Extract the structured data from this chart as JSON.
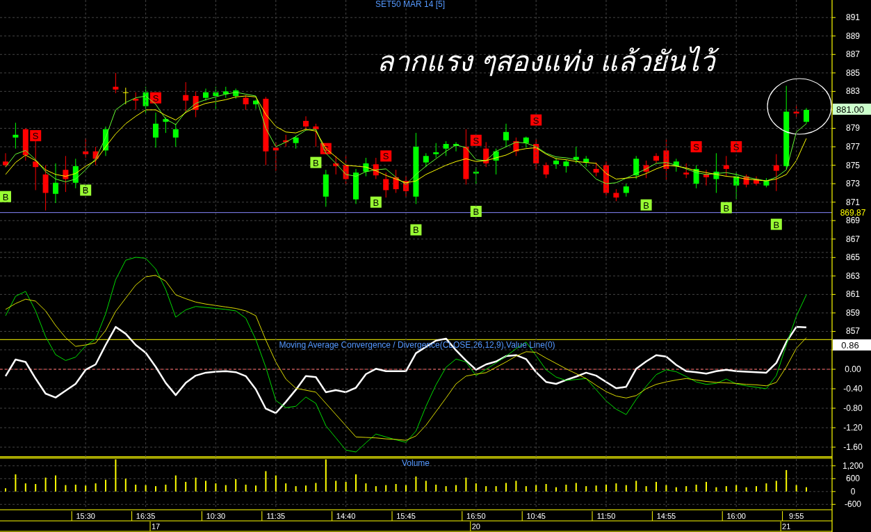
{
  "chart_data": [
    {
      "type": "candlestick",
      "title": "SET50 MAR 14  [5]",
      "annotations": [
        "ลากแรง ๆสองแท่ง แล้วยันไว้",
        "881.00"
      ],
      "categories": [
        null,
        null,
        null,
        null,
        null,
        null,
        null,
        null,
        null,
        null,
        null,
        null,
        null,
        null,
        null,
        null,
        null,
        null,
        null,
        null,
        null,
        null,
        null,
        null,
        null,
        null,
        null,
        null,
        null,
        null,
        null,
        null,
        null,
        null,
        null,
        null,
        null,
        null,
        null,
        null,
        null,
        null,
        null,
        null,
        null,
        null,
        null,
        null,
        null,
        null,
        null,
        null,
        null,
        null,
        null,
        null,
        null,
        null,
        null,
        null,
        null,
        null,
        null,
        null,
        null,
        null,
        null,
        null,
        null,
        null,
        null,
        null,
        null,
        null,
        null,
        null,
        null,
        null,
        null,
        null,
        null
      ],
      "ohlc": [
        [
          875.4,
          876.3,
          874.8,
          875.0
        ],
        [
          878.0,
          879.6,
          876.8,
          878.3
        ],
        [
          878.9,
          879.0,
          875.5,
          876.1
        ],
        [
          875.4,
          877.6,
          872.3,
          874.8
        ],
        [
          874.0,
          875.0,
          870.1,
          872.0
        ],
        [
          871.9,
          875.2,
          870.9,
          873.1
        ],
        [
          874.5,
          876.0,
          872.1,
          873.5
        ],
        [
          873.1,
          875.7,
          872.5,
          874.9
        ],
        [
          876.5,
          877.9,
          875.8,
          876.2
        ],
        [
          876.5,
          877.0,
          875.0,
          875.7
        ],
        [
          876.6,
          879.2,
          876.0,
          878.9
        ],
        [
          883.5,
          885.0,
          882.8,
          883.2
        ],
        [
          882.9,
          883.4,
          881.6,
          882.9
        ],
        [
          882.2,
          882.9,
          881.0,
          882.0
        ],
        [
          881.4,
          883.5,
          880.5,
          882.9
        ],
        [
          878.0,
          880.7,
          876.9,
          879.5
        ],
        [
          879.7,
          880.2,
          878.5,
          880.0
        ],
        [
          878.0,
          879.5,
          877.0,
          878.9
        ],
        [
          882.6,
          884.0,
          880.8,
          882.0
        ],
        [
          882.5,
          883.0,
          880.2,
          881.0
        ],
        [
          882.3,
          883.3,
          882.0,
          882.9
        ],
        [
          882.5,
          883.5,
          881.0,
          882.9
        ],
        [
          882.7,
          883.5,
          882.3,
          883.0
        ],
        [
          882.5,
          883.3,
          882.2,
          883.1
        ],
        [
          882.3,
          882.6,
          881.0,
          881.6
        ],
        [
          881.6,
          882.1,
          881.1,
          882.0
        ],
        [
          882.2,
          882.4,
          875.0,
          876.5
        ],
        [
          876.9,
          877.5,
          874.4,
          876.6
        ],
        [
          877.7,
          878.3,
          877.0,
          877.5
        ],
        [
          877.4,
          878.2,
          876.8,
          878.0
        ],
        [
          879.8,
          880.3,
          878.8,
          879.2
        ],
        [
          879.2,
          879.5,
          877.0,
          878.9
        ],
        [
          871.6,
          874.5,
          870.5,
          874.0
        ],
        [
          875.2,
          876.0,
          874.0,
          874.9
        ],
        [
          875.0,
          876.1,
          872.8,
          873.5
        ],
        [
          871.3,
          874.6,
          870.8,
          874.2
        ],
        [
          874.3,
          875.8,
          873.8,
          875.2
        ],
        [
          875.1,
          875.8,
          873.5,
          873.9
        ],
        [
          873.5,
          874.2,
          871.5,
          872.3
        ],
        [
          873.7,
          874.5,
          872.0,
          872.4
        ],
        [
          873.3,
          873.8,
          871.6,
          872.2
        ],
        [
          871.6,
          878.5,
          870.8,
          877.0
        ],
        [
          875.3,
          876.3,
          874.8,
          876.0
        ],
        [
          876.2,
          877.4,
          875.8,
          876.4
        ],
        [
          876.8,
          877.6,
          876.0,
          877.3
        ],
        [
          877.1,
          877.5,
          876.5,
          877.3
        ],
        [
          877.0,
          878.9,
          872.9,
          873.5
        ],
        [
          874.1,
          874.8,
          873.0,
          874.3
        ],
        [
          876.8,
          877.5,
          874.8,
          875.2
        ],
        [
          875.5,
          876.8,
          874.0,
          876.5
        ],
        [
          877.7,
          879.5,
          877.0,
          878.6
        ],
        [
          877.6,
          878.0,
          876.0,
          876.5
        ],
        [
          877.4,
          878.1,
          876.9,
          878.0
        ],
        [
          877.3,
          877.8,
          874.5,
          875.2
        ],
        [
          875.0,
          875.3,
          873.6,
          874.0
        ],
        [
          875.1,
          875.8,
          874.6,
          875.5
        ],
        [
          874.9,
          875.6,
          874.2,
          875.4
        ],
        [
          875.6,
          877.0,
          875.2,
          875.9
        ],
        [
          875.3,
          876.0,
          874.8,
          875.7
        ],
        [
          874.6,
          875.3,
          873.8,
          874.2
        ],
        [
          875.0,
          875.4,
          871.7,
          872.0
        ],
        [
          872.0,
          872.4,
          871.1,
          871.5
        ],
        [
          872.0,
          873.0,
          871.6,
          872.7
        ],
        [
          873.9,
          876.0,
          873.5,
          875.7
        ],
        [
          875.0,
          875.5,
          873.6,
          874.3
        ],
        [
          876.0,
          876.3,
          875.2,
          875.5
        ],
        [
          876.6,
          877.8,
          873.4,
          874.6
        ],
        [
          874.9,
          875.7,
          874.3,
          875.4
        ],
        [
          874.2,
          875.2,
          873.6,
          874.0
        ],
        [
          873.0,
          875.0,
          872.5,
          874.6
        ],
        [
          874.0,
          874.5,
          872.8,
          873.7
        ],
        [
          873.5,
          876.3,
          872.0,
          874.3
        ],
        [
          875.0,
          876.0,
          873.8,
          874.6
        ],
        [
          872.8,
          874.2,
          871.3,
          873.8
        ],
        [
          873.8,
          874.0,
          872.6,
          872.9
        ],
        [
          873.5,
          873.8,
          872.8,
          873.0
        ],
        [
          872.8,
          873.6,
          872.6,
          873.3
        ],
        [
          875.0,
          876.2,
          872.2,
          874.4
        ],
        [
          874.9,
          883.6,
          874.6,
          880.8
        ],
        [
          880.8,
          881.6,
          880.2,
          880.6
        ],
        [
          879.7,
          881.2,
          879.5,
          881.0
        ]
      ],
      "series": [
        {
          "type": "line",
          "color": "#66ff33",
          "values": [
            874.8,
            876.2,
            876.6,
            875.6,
            874.3,
            873.5,
            873.2,
            873.5,
            874.5,
            875.7,
            878.0,
            881.0,
            881.8,
            882.3,
            882.5,
            881.6,
            880.0,
            879.4,
            880.8,
            881.7,
            882.1,
            882.4,
            882.7,
            882.9,
            882.7,
            882.5,
            879.0,
            877.0,
            877.5,
            878.1,
            878.8,
            878.9,
            876.3,
            875.2,
            874.0,
            873.8,
            874.3,
            874.5,
            874.6,
            873.7,
            872.9,
            874.0,
            874.9,
            875.7,
            876.5,
            877.2,
            876.9,
            875.6,
            875.5,
            876.5,
            877.0,
            877.5,
            877.4,
            877.0,
            876.3,
            875.9,
            875.8,
            875.6,
            874.6,
            873.5,
            873.0,
            873.1,
            873.6,
            874.1,
            874.6,
            875.2,
            875.3,
            875.0,
            874.6,
            874.2,
            874.0,
            874.1,
            874.2,
            874.0,
            873.7,
            873.5,
            873.3,
            873.7,
            874.5,
            878.6,
            879.5
          ]
        },
        {
          "type": "line",
          "color": "#ffff00",
          "values": [
            874.0,
            875.3,
            876.1,
            875.5,
            874.5,
            874.0,
            873.8,
            874.1,
            874.9,
            875.5,
            877.0,
            878.4,
            879.5,
            880.3,
            881.0,
            881.0,
            880.4,
            879.9,
            880.7,
            881.3,
            881.7,
            881.9,
            882.1,
            882.4,
            882.5,
            882.4,
            880.5,
            879.2,
            878.6,
            878.5,
            878.9,
            878.7,
            876.8,
            875.9,
            875.0,
            874.9,
            874.8,
            874.4,
            873.9,
            873.5,
            873.1,
            873.3,
            874.0,
            874.5,
            875.0,
            875.4,
            875.7,
            875.4,
            875.5,
            875.8,
            876.1,
            876.6,
            876.8,
            876.9,
            876.2,
            875.7,
            875.6,
            875.4,
            875.3,
            875.2,
            874.1,
            873.5,
            873.6,
            873.7,
            874.1,
            874.6,
            875.0,
            874.9,
            874.7,
            874.4,
            874.2,
            874.0,
            873.8,
            873.7,
            873.5,
            873.4,
            873.3,
            873.5,
            874.0,
            875.5,
            877.9
          ]
        },
        {
          "type": "scatter",
          "marker": "square",
          "color": "#99ff33",
          "values": [
            871.6,
            null,
            null,
            null,
            null,
            null,
            null,
            null,
            872.3,
            null,
            null,
            null,
            null,
            null,
            null,
            null,
            null,
            null,
            null,
            null,
            null,
            null,
            null,
            null,
            null,
            null,
            null,
            null,
            null,
            null,
            null,
            875.3,
            null,
            null,
            null,
            null,
            null,
            871.0,
            null,
            null,
            null,
            868.0,
            null,
            null,
            null,
            null,
            null,
            870.0,
            null,
            null,
            null,
            null,
            null,
            null,
            null,
            null,
            null,
            null,
            null,
            null,
            null,
            null,
            null,
            null,
            870.7,
            null,
            null,
            null,
            null,
            null,
            null,
            null,
            870.4,
            null,
            null,
            null,
            null,
            868.6,
            null,
            null,
            null
          ],
          "value_labels": [
            "B",
            null,
            null,
            null,
            null,
            null,
            null,
            null,
            "B",
            null,
            null,
            null,
            null,
            null,
            null,
            null,
            null,
            null,
            null,
            null,
            null,
            null,
            null,
            null,
            null,
            null,
            null,
            null,
            null,
            null,
            null,
            "B",
            null,
            null,
            null,
            null,
            null,
            "B",
            null,
            null,
            null,
            "B",
            null,
            null,
            null,
            null,
            null,
            "B",
            null,
            null,
            null,
            null,
            null,
            null,
            null,
            null,
            null,
            null,
            null,
            null,
            null,
            null,
            null,
            null,
            "B",
            null,
            null,
            null,
            null,
            null,
            null,
            null,
            "B",
            null,
            null,
            null,
            null,
            "B",
            null,
            null,
            null
          ]
        },
        {
          "type": "scatter",
          "marker": "square",
          "color": "#ff0000",
          "values": [
            null,
            null,
            null,
            878.2,
            null,
            null,
            null,
            null,
            null,
            null,
            null,
            null,
            null,
            null,
            null,
            882.3,
            null,
            null,
            null,
            null,
            null,
            null,
            null,
            null,
            null,
            null,
            null,
            null,
            null,
            null,
            null,
            null,
            876.8,
            null,
            null,
            null,
            null,
            null,
            876.0,
            null,
            null,
            null,
            null,
            null,
            null,
            null,
            null,
            877.7,
            null,
            null,
            null,
            null,
            null,
            879.9,
            null,
            null,
            null,
            null,
            null,
            null,
            null,
            null,
            null,
            null,
            null,
            null,
            null,
            null,
            null,
            877.0,
            null,
            null,
            null,
            877.0,
            null,
            null,
            null,
            null,
            null,
            null,
            null
          ],
          "value_labels": [
            null,
            null,
            null,
            "S",
            null,
            null,
            null,
            null,
            null,
            null,
            null,
            null,
            null,
            null,
            null,
            "S",
            null,
            null,
            null,
            null,
            null,
            null,
            null,
            null,
            null,
            null,
            null,
            null,
            null,
            null,
            null,
            null,
            "S",
            null,
            null,
            null,
            null,
            null,
            "S",
            null,
            null,
            null,
            null,
            null,
            null,
            null,
            null,
            "S",
            null,
            null,
            null,
            null,
            null,
            "S",
            null,
            null,
            null,
            null,
            null,
            null,
            null,
            null,
            null,
            null,
            null,
            null,
            null,
            null,
            null,
            "S",
            null,
            null,
            null,
            "S",
            null,
            null,
            null,
            null,
            null,
            null,
            null
          ]
        }
      ],
      "ylim": [
        843.4,
        892.9
      ],
      "yticks": [
        857,
        859,
        861,
        863,
        865,
        867,
        869,
        871,
        873,
        875,
        877,
        879,
        {
          "value": 881,
          "label": null
        },
        883,
        885,
        887,
        889,
        891
      ],
      "tick_labels": "y",
      "grid": true,
      "ref_lines": [
        {
          "axis": "y",
          "value": 869.87,
          "label": "869.87",
          "color": "#8888ff"
        }
      ]
    },
    {
      "type": "line",
      "title": "Moving Average Convergence / Divergence(CLOSE,26,12,9),Value Line(0)",
      "annotations": [
        "0.86"
      ],
      "categories": [
        null,
        null,
        null,
        null,
        null,
        null,
        null,
        null,
        null,
        null,
        null,
        null,
        null,
        null,
        null,
        null,
        null,
        null,
        null,
        null,
        null,
        null,
        null,
        null,
        null,
        null,
        null,
        null,
        null,
        null,
        null,
        null,
        null,
        null,
        null,
        null,
        null,
        null,
        null,
        null,
        null,
        null,
        null,
        null,
        null,
        null,
        null,
        null,
        null,
        null,
        null,
        null,
        null,
        null,
        null,
        null,
        null,
        null,
        null,
        null,
        null,
        null,
        null,
        null,
        null,
        null,
        null,
        null,
        null,
        null,
        null,
        null,
        null,
        null,
        null,
        null,
        null,
        null,
        null,
        null,
        null
      ],
      "series": [
        {
          "color": "#ffffff",
          "values": [
            -0.14,
            0.2,
            0.15,
            -0.19,
            -0.5,
            -0.58,
            -0.44,
            -0.3,
            -0.01,
            0.1,
            0.5,
            0.87,
            0.73,
            0.5,
            0.34,
            0.05,
            -0.28,
            -0.53,
            -0.28,
            -0.13,
            -0.07,
            -0.05,
            -0.04,
            -0.06,
            -0.14,
            -0.41,
            -0.81,
            -0.9,
            -0.67,
            -0.42,
            -0.14,
            -0.16,
            -0.47,
            -0.43,
            -0.47,
            -0.38,
            -0.1,
            0.01,
            -0.04,
            -0.04,
            -0.04,
            0.33,
            0.46,
            0.59,
            0.63,
            0.39,
            0.18,
            -0.01,
            0.1,
            0.16,
            0.27,
            0.29,
            0.21,
            -0.06,
            -0.26,
            -0.3,
            -0.22,
            -0.15,
            -0.07,
            -0.13,
            -0.26,
            -0.39,
            -0.36,
            0.01,
            0.16,
            0.29,
            0.26,
            0.09,
            -0.04,
            -0.06,
            -0.09,
            -0.04,
            -0.01,
            -0.04,
            -0.05,
            -0.06,
            -0.07,
            0.13,
            0.56,
            0.87,
            0.86
          ]
        },
        {
          "color": "#00dd00",
          "values": [
            1.1,
            1.5,
            1.6,
            1.2,
            0.67,
            0.3,
            0.18,
            0.25,
            0.48,
            0.62,
            1.14,
            1.84,
            2.24,
            2.3,
            2.28,
            2.06,
            1.64,
            1.07,
            1.22,
            1.29,
            1.27,
            1.25,
            1.23,
            1.2,
            1.05,
            0.61,
            0.04,
            -0.64,
            -0.79,
            -0.76,
            -0.57,
            -0.7,
            -1.16,
            -1.41,
            -1.66,
            -1.7,
            -1.51,
            -1.33,
            -1.39,
            -1.45,
            -1.5,
            -1.27,
            -0.76,
            -0.32,
            0.04,
            0.21,
            0.15,
            -0.13,
            0.0,
            0.13,
            0.27,
            0.42,
            0.56,
            0.28,
            -0.01,
            -0.16,
            -0.23,
            -0.21,
            -0.19,
            -0.42,
            -0.65,
            -0.82,
            -0.93,
            -0.62,
            -0.35,
            -0.11,
            -0.01,
            -0.05,
            -0.15,
            -0.26,
            -0.31,
            -0.29,
            -0.2,
            -0.3,
            -0.34,
            -0.37,
            -0.4,
            -0.13,
            0.5,
            1.09,
            1.53
          ]
        },
        {
          "color": "#dddd00",
          "values": [
            1.23,
            1.35,
            1.44,
            1.4,
            1.2,
            0.9,
            0.65,
            0.47,
            0.5,
            0.54,
            0.8,
            1.19,
            1.46,
            1.73,
            1.9,
            1.93,
            1.81,
            1.53,
            1.45,
            1.38,
            1.34,
            1.31,
            1.28,
            1.25,
            1.2,
            1.1,
            0.6,
            0.15,
            -0.2,
            -0.39,
            -0.43,
            -0.47,
            -0.7,
            -0.93,
            -1.16,
            -1.39,
            -1.4,
            -1.41,
            -1.43,
            -1.44,
            -1.46,
            -1.37,
            -1.15,
            -0.87,
            -0.59,
            -0.3,
            -0.14,
            -0.1,
            -0.07,
            0.04,
            0.15,
            0.27,
            0.36,
            0.35,
            0.23,
            0.12,
            0.01,
            -0.09,
            -0.19,
            -0.33,
            -0.46,
            -0.55,
            -0.59,
            -0.54,
            -0.4,
            -0.31,
            -0.26,
            -0.22,
            -0.19,
            -0.22,
            -0.25,
            -0.27,
            -0.28,
            -0.29,
            -0.31,
            -0.32,
            -0.34,
            -0.27,
            0.05,
            0.43,
            0.65
          ]
        }
      ],
      "ylim": [
        -1.8,
        2.4
      ],
      "yticks": [
        {
          "value": 0.4,
          "label": null
        },
        {
          "value": 0,
          "label": "0.00"
        },
        {
          "value": -0.4,
          "label": "-0.40"
        },
        {
          "value": -0.8,
          "label": "-0.80"
        },
        {
          "value": -1.2,
          "label": "-1.20"
        },
        {
          "value": -1.6,
          "label": "-1.60"
        }
      ],
      "tick_labels": "y",
      "grid": true,
      "ref_lines": [
        {
          "axis": "y",
          "value": 0,
          "color": "#ff6666",
          "line_style": "dashed"
        },
        {
          "axis": "y",
          "value": 0.61,
          "color": "#ffff00"
        }
      ]
    },
    {
      "type": "bar",
      "title": "Volume",
      "color": "#ffff00",
      "annotations": [
        "17",
        "20",
        "21"
      ],
      "categories": [
        null,
        null,
        null,
        null,
        null,
        null,
        null,
        null,
        "15:30",
        null,
        null,
        null,
        null,
        null,
        "16:35",
        null,
        null,
        null,
        null,
        null,
        null,
        "10:30",
        null,
        null,
        null,
        null,
        null,
        "11:35",
        null,
        null,
        null,
        null,
        null,
        null,
        "14:40",
        null,
        null,
        null,
        null,
        null,
        "15:45",
        null,
        null,
        null,
        null,
        null,
        null,
        "16:50",
        null,
        null,
        null,
        null,
        null,
        "10:45",
        null,
        null,
        null,
        null,
        null,
        null,
        "11:50",
        null,
        null,
        null,
        null,
        null,
        "14:55",
        null,
        null,
        null,
        null,
        null,
        null,
        "16:00",
        null,
        null,
        null,
        null,
        null,
        "9:55",
        null
      ],
      "values": [
        150,
        800,
        380,
        350,
        650,
        750,
        300,
        320,
        280,
        380,
        550,
        1500,
        600,
        320,
        300,
        250,
        320,
        750,
        450,
        650,
        500,
        380,
        300,
        580,
        320,
        280,
        950,
        750,
        380,
        250,
        280,
        400,
        1500,
        500,
        450,
        800,
        380,
        250,
        300,
        350,
        300,
        700,
        500,
        320,
        250,
        300,
        650,
        380,
        250,
        250,
        400,
        500,
        250,
        300,
        350,
        200,
        320,
        400,
        250,
        280,
        320,
        380,
        300,
        500,
        250,
        450,
        300,
        200,
        250,
        320,
        450,
        200,
        250,
        300,
        200,
        250,
        380,
        500,
        1000,
        300,
        200
      ],
      "ylim": [
        -850,
        1550
      ],
      "yticks": [
        {
          "value": 1200,
          "label": "1,200"
        },
        600,
        0,
        -600
      ],
      "grid": true
    }
  ]
}
